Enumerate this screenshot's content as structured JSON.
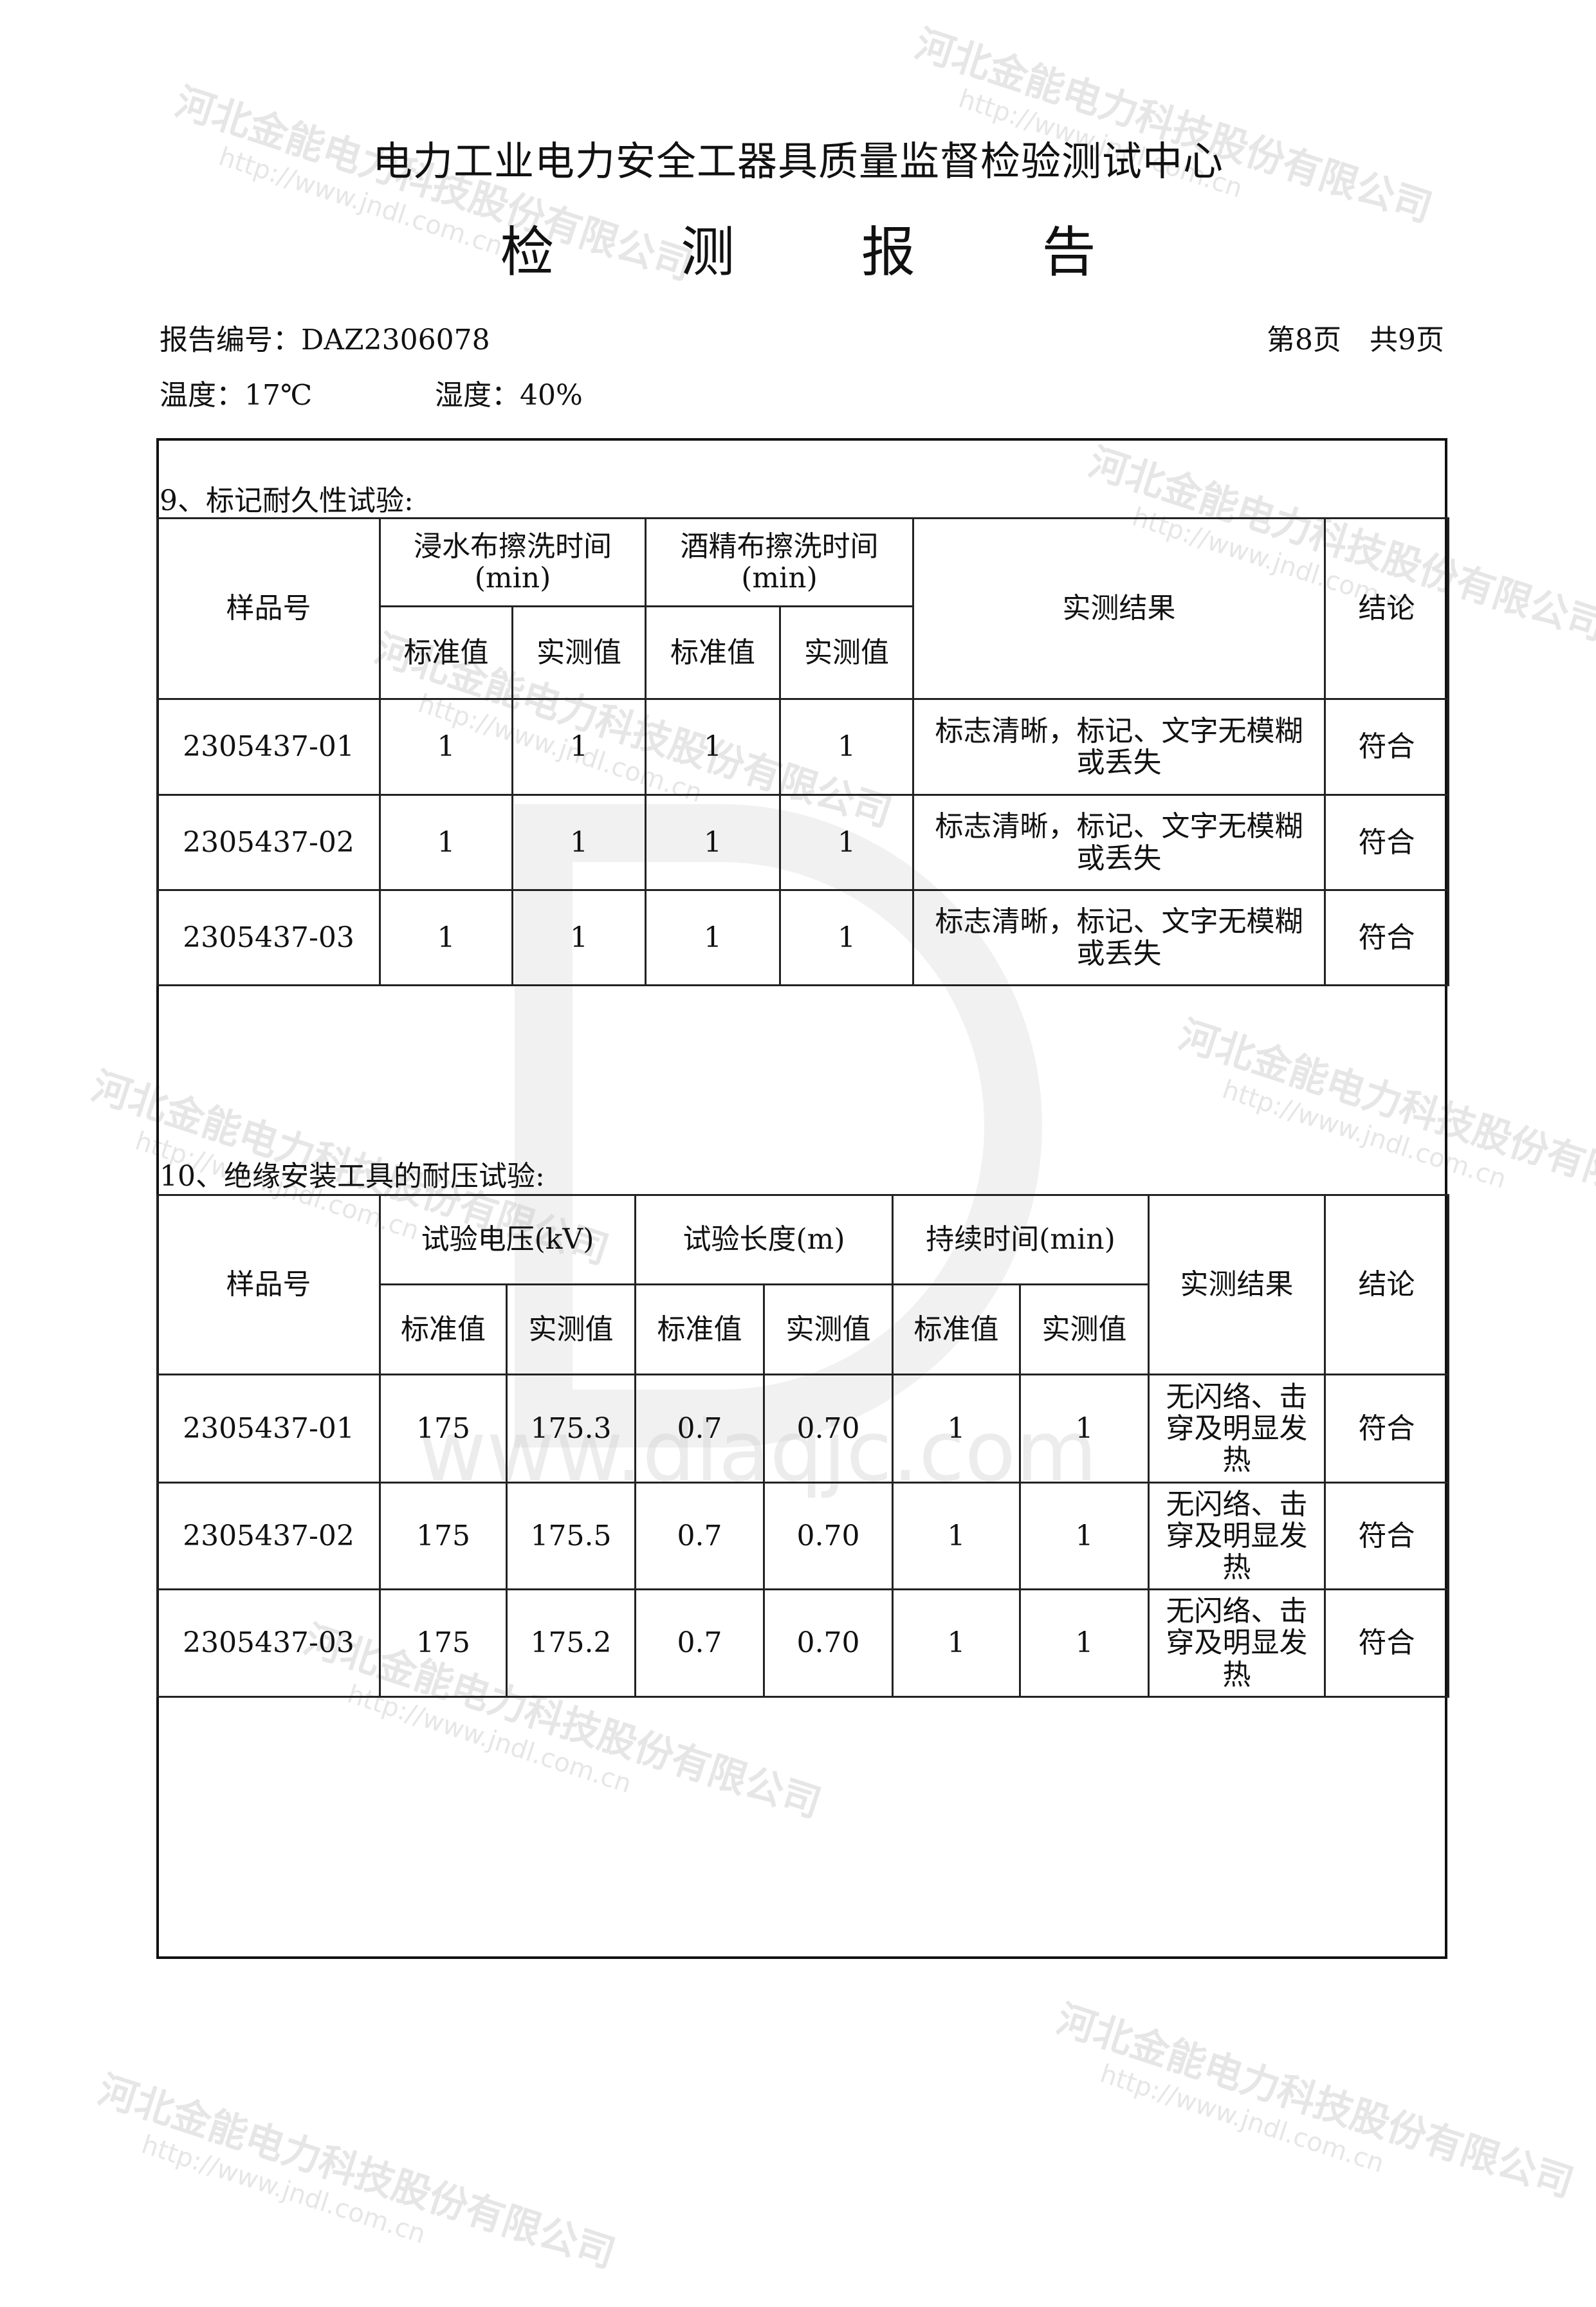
{
  "header": {
    "title": "电力工业电力安全工器具质量监督检验测试中心",
    "subtitle": "检 测 报 告",
    "report_no": "报告编号：DAZ2306078",
    "page": "第8页　共9页",
    "temperature": "温度：17℃",
    "humidity": "湿度：40%"
  },
  "section9": {
    "title": "9、标记耐久性试验:",
    "headers": {
      "sample": "样品号",
      "water": "浸水布擦洗时间(min)",
      "alcohol": "酒精布擦洗时间(min)",
      "result": "实测结果",
      "conclusion": "结论",
      "std": "标准值",
      "meas": "实测值"
    },
    "rows": [
      {
        "sample": "2305437-01",
        "w_std": "1",
        "w_meas": "1",
        "a_std": "1",
        "a_meas": "1",
        "result": "标志清晰，标记、文字无模糊或丢失",
        "conclusion": "符合"
      },
      {
        "sample": "2305437-02",
        "w_std": "1",
        "w_meas": "1",
        "a_std": "1",
        "a_meas": "1",
        "result": "标志清晰，标记、文字无模糊或丢失",
        "conclusion": "符合"
      },
      {
        "sample": "2305437-03",
        "w_std": "1",
        "w_meas": "1",
        "a_std": "1",
        "a_meas": "1",
        "result": "标志清晰，标记、文字无模糊或丢失",
        "conclusion": "符合"
      }
    ]
  },
  "section10": {
    "title": "10、绝缘安装工具的耐压试验:",
    "headers": {
      "sample": "样品号",
      "voltage": "试验电压(kV)",
      "length": "试验长度(m)",
      "duration": "持续时间(min)",
      "result": "实测结果",
      "conclusion": "结论",
      "std": "标准值",
      "meas": "实测值"
    },
    "rows": [
      {
        "sample": "2305437-01",
        "v_std": "175",
        "v_meas": "175.3",
        "l_std": "0.7",
        "l_meas": "0.70",
        "d_std": "1",
        "d_meas": "1",
        "result": "无闪络、击穿及明显发热",
        "conclusion": "符合"
      },
      {
        "sample": "2305437-02",
        "v_std": "175",
        "v_meas": "175.5",
        "l_std": "0.7",
        "l_meas": "0.70",
        "d_std": "1",
        "d_meas": "1",
        "result": "无闪络、击穿及明显发热",
        "conclusion": "符合"
      },
      {
        "sample": "2305437-03",
        "v_std": "175",
        "v_meas": "175.2",
        "l_std": "0.7",
        "l_meas": "0.70",
        "d_std": "1",
        "d_meas": "1",
        "result": "无闪络、击穿及明显发热",
        "conclusion": "符合"
      }
    ]
  },
  "watermark": {
    "company": "河北金能电力科技股份有限公司",
    "url": "http://www.jndl.com.cn",
    "site": "www.dlaqjc.com",
    "color": "#c8c8c8"
  }
}
